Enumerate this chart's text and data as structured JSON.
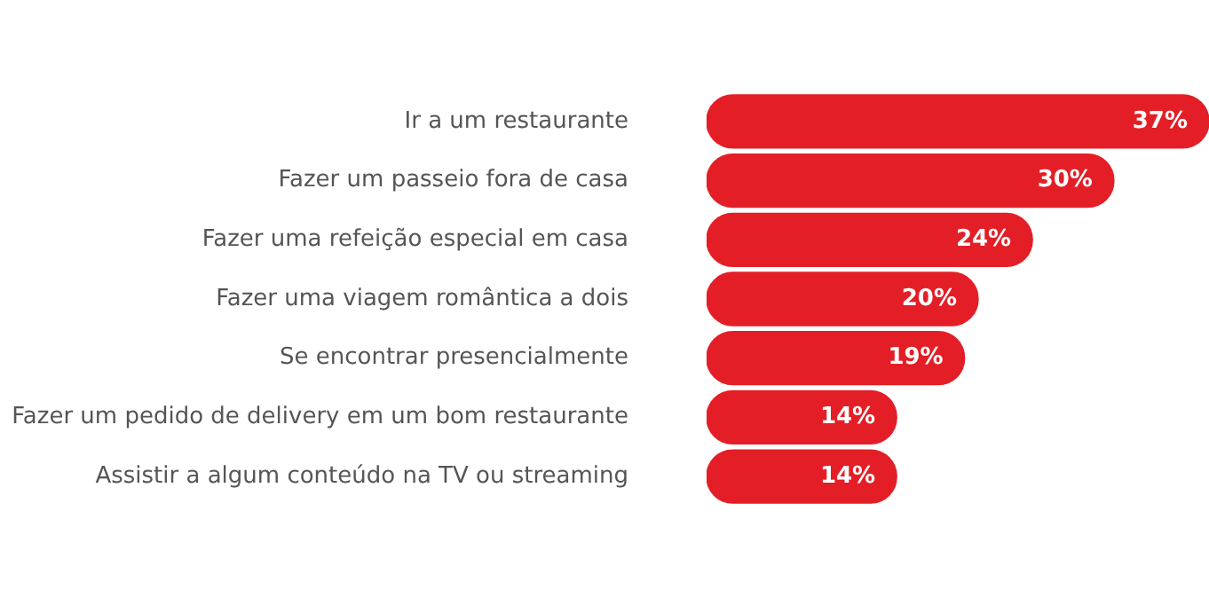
{
  "chart_data": {
    "type": "bar",
    "orientation": "horizontal",
    "categories": [
      "Ir a um restaurante",
      "Fazer um passeio fora de casa",
      "Fazer uma refeição especial em casa",
      "Fazer uma viagem romântica a dois",
      "Se encontrar presencialmente",
      "Fazer um pedido de delivery em um bom restaurante",
      "Assistir a algum conteúdo na TV ou streaming"
    ],
    "values": [
      37,
      30,
      24,
      20,
      19,
      14,
      14
    ],
    "value_labels": [
      "37%",
      "30%",
      "24%",
      "20%",
      "19%",
      "14%",
      "14%"
    ],
    "color": "#e41e26",
    "legend": false
  }
}
